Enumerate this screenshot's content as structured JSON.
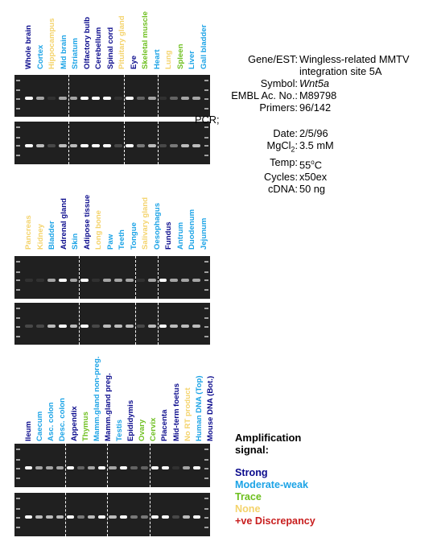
{
  "colors": {
    "strong": "#0a0a8c",
    "moderate": "#1ba3e6",
    "trace": "#6dbf1e",
    "none": "#f4d36b",
    "discrepancy": "#c81e1e",
    "gel": "#202020"
  },
  "panels": [
    {
      "lanes": [
        {
          "label": "Whole brain",
          "level": "strong"
        },
        {
          "label": "Cortex",
          "level": "moderate"
        },
        {
          "label": "Hippocampus",
          "level": "none"
        },
        {
          "label": "Mid brain",
          "level": "moderate"
        },
        {
          "label": "Striatum",
          "level": "moderate"
        },
        {
          "label": "Olfactory bulb",
          "level": "strong"
        },
        {
          "label": "Cerebellum",
          "level": "strong"
        },
        {
          "label": "Spinal cord",
          "level": "strong"
        },
        {
          "label": "Pituitary gland",
          "level": "none"
        },
        {
          "label": "Eye",
          "level": "strong"
        },
        {
          "label": "Skeletal muscle",
          "level": "trace"
        },
        {
          "label": "Heart",
          "level": "moderate"
        },
        {
          "label": "Lung",
          "level": "none"
        },
        {
          "label": "Spleen",
          "level": "trace"
        },
        {
          "label": "Liver",
          "level": "moderate"
        },
        {
          "label": "Gall bladder",
          "level": "moderate"
        }
      ],
      "separators_after": [
        3,
        8,
        11
      ]
    },
    {
      "lanes": [
        {
          "label": "Pancreas",
          "level": "none"
        },
        {
          "label": "Kidney",
          "level": "none"
        },
        {
          "label": "Bladder",
          "level": "moderate"
        },
        {
          "label": "Adrenal gland",
          "level": "strong"
        },
        {
          "label": "Skin",
          "level": "moderate"
        },
        {
          "label": "Adipose tissue",
          "level": "strong"
        },
        {
          "label": "Long bone",
          "level": "none"
        },
        {
          "label": "Paw",
          "level": "moderate"
        },
        {
          "label": "Teeth",
          "level": "moderate"
        },
        {
          "label": "Tongue",
          "level": "moderate"
        },
        {
          "label": "Salivary gland",
          "level": "none"
        },
        {
          "label": "Oesophagus",
          "level": "moderate"
        },
        {
          "label": "Fundus",
          "level": "strong"
        },
        {
          "label": "Antrum",
          "level": "moderate"
        },
        {
          "label": "Duodenum",
          "level": "moderate"
        },
        {
          "label": "Jejunum",
          "level": "moderate"
        }
      ],
      "separators_after": [
        4,
        9,
        11
      ]
    },
    {
      "lanes": [
        {
          "label": "Ileum",
          "level": "strong"
        },
        {
          "label": "Caecum",
          "level": "moderate"
        },
        {
          "label": "Asc. colon",
          "level": "moderate"
        },
        {
          "label": "Desc. colon",
          "level": "moderate"
        },
        {
          "label": "Appendix",
          "level": "strong"
        },
        {
          "label": "Thymus",
          "level": "trace"
        },
        {
          "label": "Mamm.gland non-preg.",
          "level": "moderate"
        },
        {
          "label": "Mamm.gland preg.",
          "level": "strong"
        },
        {
          "label": "Testis",
          "level": "moderate"
        },
        {
          "label": "Epididymis",
          "level": "strong"
        },
        {
          "label": "Ovary",
          "level": "trace"
        },
        {
          "label": "Cervix",
          "level": "trace"
        },
        {
          "label": "Placenta",
          "level": "strong"
        },
        {
          "label": "Mid-term foetus",
          "level": "strong"
        },
        {
          "label": "No RT product",
          "level": "none"
        },
        {
          "label": "Human DNA (Top)",
          "level": "moderate"
        },
        {
          "label": "Mouse DNA (Bot.)",
          "level": "strong"
        }
      ],
      "separators_after": [
        3,
        7,
        11
      ]
    }
  ],
  "info": {
    "gene_label": "Gene/EST:",
    "gene_value_1": "Wingless-related MMTV",
    "gene_value_2": "integration site 5A",
    "symbol_label": "Symbol:",
    "symbol_value": "Wnt5a",
    "embl_label": "EMBL Ac. No.:",
    "embl_value": "M89798",
    "primers_label": "Primers:",
    "primers_value": "96/142",
    "pcr_label": "PCR;",
    "date_label": "Date:",
    "date_value": "2/5/96",
    "mgcl_label_a": "MgCl",
    "mgcl_label_sub": "2",
    "mgcl_label_b": ":",
    "mgcl_value": "3.5 mM",
    "temp_label": "Temp:",
    "temp_value_a": "55",
    "temp_value_sup": "o",
    "temp_value_b": "C",
    "cycles_label": "Cycles:",
    "cycles_value": "x50ex",
    "cdna_label": "cDNA:",
    "cdna_value": "50 ng"
  },
  "legend": {
    "title_1": "Amplification",
    "title_2": "signal:",
    "strong": "Strong",
    "moderate": "Moderate-weak",
    "trace": "Trace",
    "none": "None",
    "discrepancy": "+ve Discrepancy"
  }
}
